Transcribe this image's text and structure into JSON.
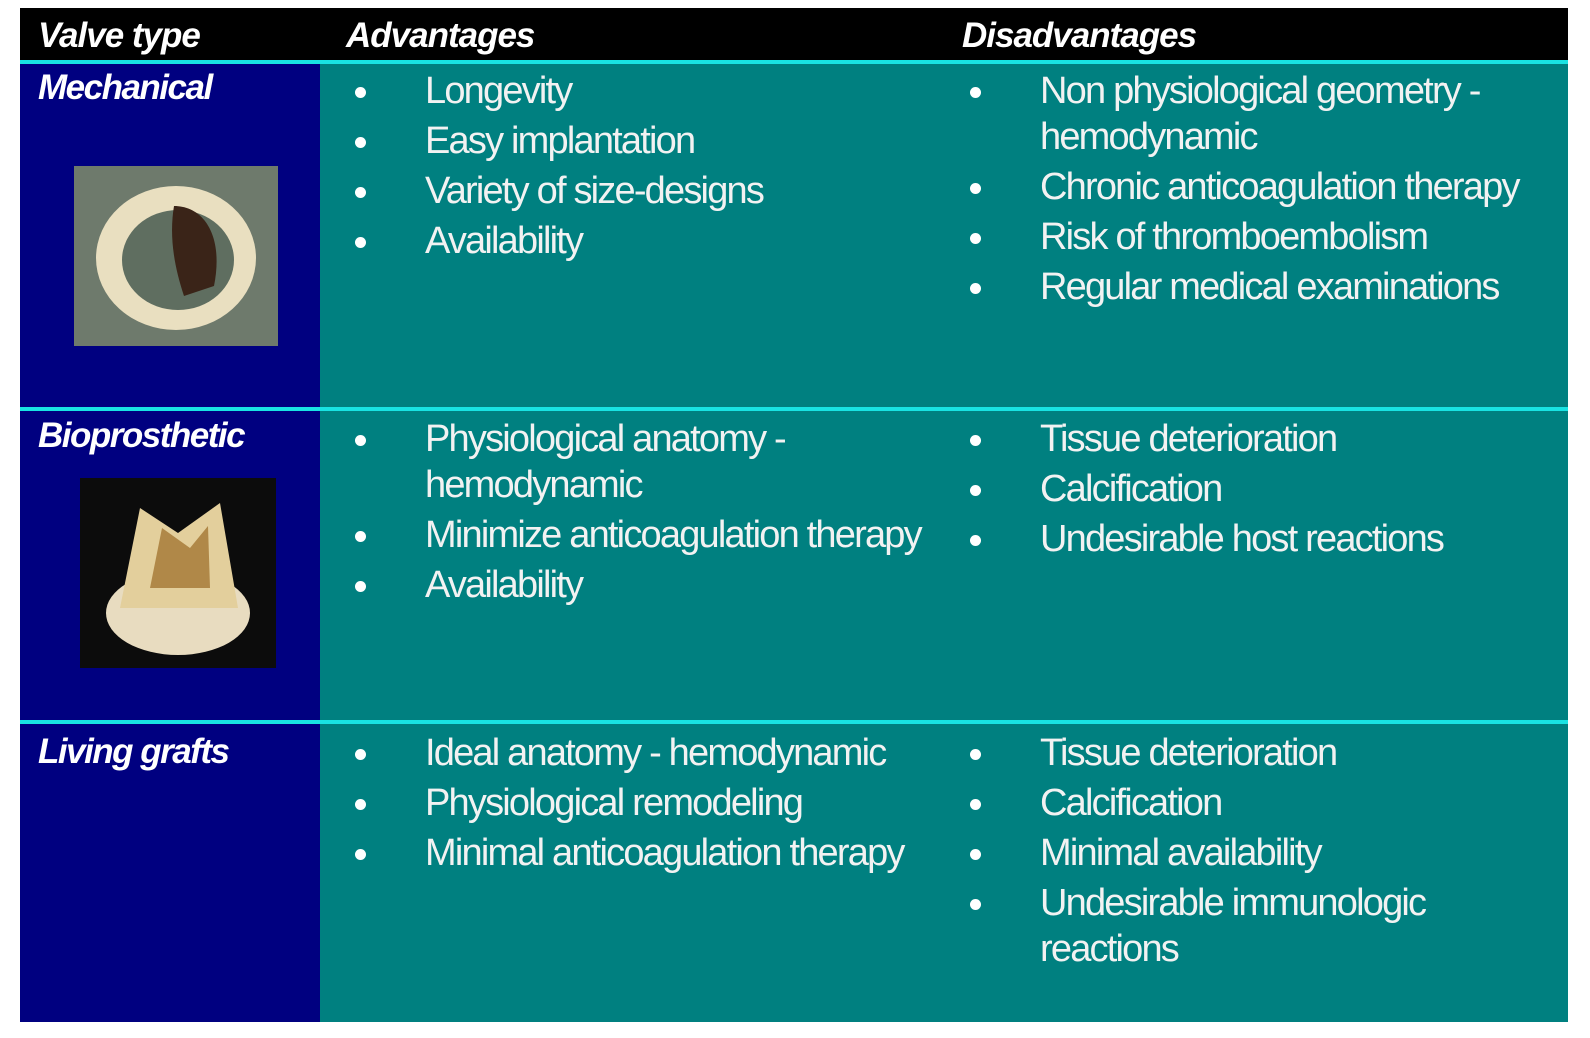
{
  "table": {
    "header": [
      "Valve type",
      "Advantages",
      "Disadvantages"
    ],
    "rows": [
      {
        "type": "Mechanical",
        "advantages": [
          "Longevity",
          "Easy implantation",
          "Variety of size-designs",
          "Availability"
        ],
        "disadvantages": [
          "Non physiological geometry - hemodynamic",
          "Chronic anticoagulation therapy",
          "Risk of thromboembolism",
          "Regular medical examinations"
        ]
      },
      {
        "type": "Bioprosthetic",
        "advantages": [
          "Physiological anatomy - hemodynamic",
          "Minimize anticoagulation therapy",
          "Availability"
        ],
        "disadvantages": [
          "Tissue deterioration",
          "Calcification",
          "Undesirable host reactions"
        ]
      },
      {
        "type": "Living grafts",
        "advantages": [
          "Ideal anatomy - hemodynamic",
          "Physiological remodeling",
          "Minimal anticoagulation therapy"
        ],
        "disadvantages": [
          "Tissue deterioration",
          "Calcification",
          "Minimal availability",
          "Undesirable immunologic reactions"
        ]
      }
    ]
  }
}
